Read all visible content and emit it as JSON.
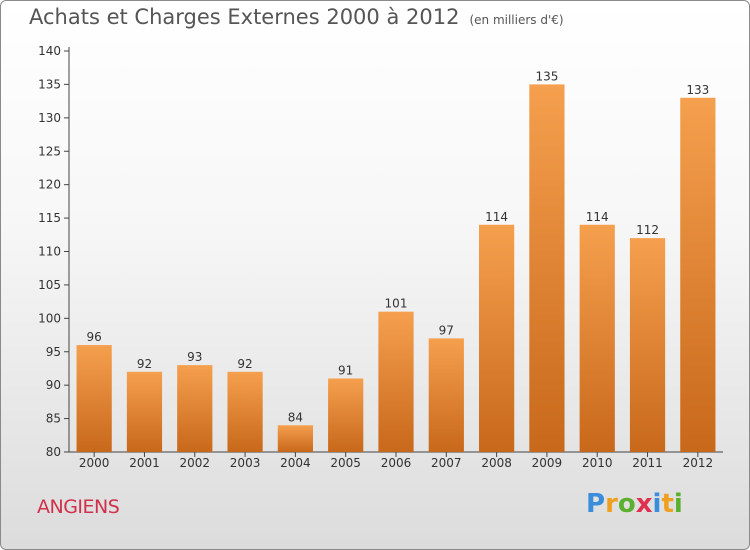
{
  "title": "Achats et Charges Externes 2000 à 2012",
  "subtitle": "(en milliers d'€)",
  "commune": "ANGIENS",
  "logo": {
    "letters": [
      "P",
      "r",
      "o",
      "x",
      "i",
      "t",
      "i"
    ],
    "colors": [
      "#3a8ddb",
      "#f0a020",
      "#5bb030",
      "#e03050",
      "#3a8ddb",
      "#f0a020",
      "#5bb030"
    ]
  },
  "chart_data": {
    "type": "bar",
    "title": "Achats et Charges Externes 2000 à 2012",
    "subtitle": "(en milliers d'€)",
    "categories": [
      "2000",
      "2001",
      "2002",
      "2003",
      "2004",
      "2005",
      "2006",
      "2007",
      "2008",
      "2009",
      "2010",
      "2011",
      "2012"
    ],
    "values": [
      96,
      92,
      93,
      92,
      84,
      91,
      101,
      97,
      114,
      135,
      114,
      112,
      133
    ],
    "ylim": [
      80,
      140
    ],
    "yticks": [
      80,
      85,
      90,
      95,
      100,
      105,
      110,
      115,
      120,
      125,
      130,
      135,
      140
    ],
    "grid": false,
    "legend": "none",
    "bar_color_top": "#f5a04e",
    "bar_color_bottom": "#c8681a"
  }
}
